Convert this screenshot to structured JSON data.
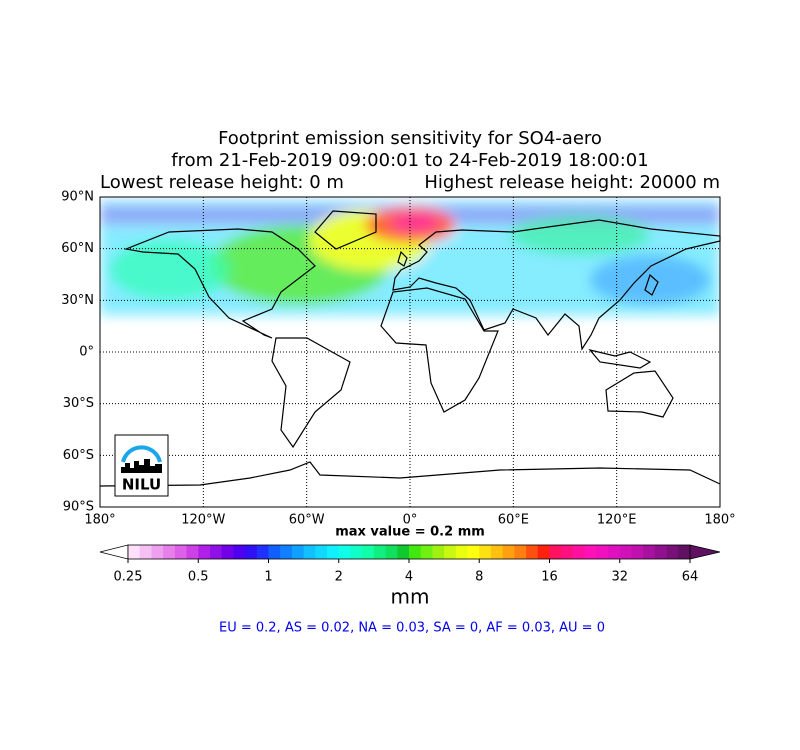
{
  "title": {
    "line1": "Footprint emission sensitivity for SO4-aero",
    "line2": "from 21-Feb-2019 09:00:01 to 24-Feb-2019 18:00:01",
    "release_low": "Lowest release height: 0 m",
    "release_high": "Highest release height: 20000 m"
  },
  "map": {
    "xlim": [
      -180,
      180
    ],
    "ylim": [
      -90,
      90
    ],
    "grid": true,
    "lat_ticks": [
      {
        "value": 90,
        "label": "90°N"
      },
      {
        "value": 60,
        "label": "60°N"
      },
      {
        "value": 30,
        "label": "30°N"
      },
      {
        "value": 0,
        "label": "0°"
      },
      {
        "value": -30,
        "label": "30°S"
      },
      {
        "value": -60,
        "label": "60°S"
      },
      {
        "value": -90,
        "label": "90°S"
      }
    ],
    "lon_ticks": [
      {
        "value": -180,
        "label": "180°"
      },
      {
        "value": -120,
        "label": "120°W"
      },
      {
        "value": -60,
        "label": "60°W"
      },
      {
        "value": 0,
        "label": "0°"
      },
      {
        "value": 60,
        "label": "60°E"
      },
      {
        "value": 120,
        "label": "120°E"
      },
      {
        "value": 180,
        "label": "180°"
      }
    ]
  },
  "max_value_label": "max value = 0.2 mm",
  "colorbar": {
    "scale": "log",
    "lim": [
      0.25,
      64
    ],
    "ticks": [
      0.25,
      0.5,
      1,
      2,
      4,
      8,
      16,
      32,
      64
    ],
    "label": "mm",
    "under_color": "#ffffff",
    "over_color": "#601060",
    "colors": [
      "#fde0fb",
      "#f7c0f5",
      "#f0a0f0",
      "#e880ec",
      "#dd60e8",
      "#cc40e6",
      "#b020e8",
      "#9010e8",
      "#7000e8",
      "#5000f0",
      "#3010f5",
      "#2030ff",
      "#1060ff",
      "#1080ff",
      "#10a0ff",
      "#10c0ff",
      "#10d8ff",
      "#10f0ff",
      "#10ffe8",
      "#10ffc8",
      "#10ffa8",
      "#10f080",
      "#10e060",
      "#10c830",
      "#40e810",
      "#70f010",
      "#a0f010",
      "#c8f810",
      "#e8ff10",
      "#ffff10",
      "#ffe010",
      "#ffc010",
      "#ffa010",
      "#ff8010",
      "#ff5010",
      "#ff2010",
      "#ff1060",
      "#ff1080",
      "#ff10a0",
      "#ff10b8",
      "#f010c0",
      "#e010c0",
      "#d010b8",
      "#c010b0",
      "#a810a0",
      "#901090",
      "#781078",
      "#601060"
    ]
  },
  "summary": "EU = 0.2,  AS = 0.02,  NA = 0.03,  SA = 0,  AF = 0.03,  AU = 0",
  "logo": "NILU"
}
